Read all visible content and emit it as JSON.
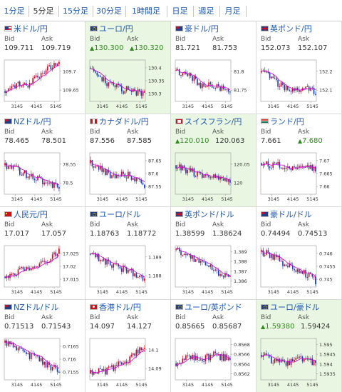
{
  "tabs": [
    {
      "label": "1分足",
      "active": false
    },
    {
      "label": "5分足",
      "active": true
    },
    {
      "label": "15分足",
      "active": false
    },
    {
      "label": "30分足",
      "active": false
    },
    {
      "label": "1時間足",
      "active": false
    },
    {
      "label": "日足",
      "active": false
    },
    {
      "label": "週足",
      "active": false
    },
    {
      "label": "月足",
      "active": false
    }
  ],
  "labels": {
    "bid": "Bid",
    "ask": "Ask"
  },
  "colors": {
    "up_candle": "#e0001a",
    "down_candle": "#1a3cb4",
    "ma_line": "#d600d6",
    "up_text": "#2e8b1c",
    "highlight": "#e9f7e2"
  },
  "pairs": [
    {
      "name": "米ドル/円",
      "flag": "us",
      "bid": "109.711",
      "ask": "109.719",
      "bid_up": false,
      "ask_up": false,
      "highlight": false,
      "y_ticks": [
        "109.7",
        "109.65"
      ],
      "x_ticks": [
        "3145",
        "4145",
        "5145"
      ]
    },
    {
      "name": "ユーロ/円",
      "flag": "eu",
      "bid": "130.300",
      "ask": "130.320",
      "bid_up": true,
      "ask_up": true,
      "highlight": true,
      "y_ticks": [
        "130.4",
        "130.35",
        "130.3"
      ],
      "x_ticks": [
        "3145",
        "4145",
        "5145"
      ]
    },
    {
      "name": "豪ドル/円",
      "flag": "au",
      "bid": "81.721",
      "ask": "81.753",
      "bid_up": false,
      "ask_up": false,
      "highlight": false,
      "y_ticks": [
        "81.8",
        "81.75"
      ],
      "x_ticks": [
        "3145",
        "4145",
        "5145"
      ]
    },
    {
      "name": "英ポンド/円",
      "flag": "gb",
      "bid": "152.073",
      "ask": "152.107",
      "bid_up": false,
      "ask_up": false,
      "highlight": false,
      "y_ticks": [
        "152.2",
        "152.1"
      ],
      "x_ticks": [
        "3145",
        "4145",
        "5145"
      ]
    },
    {
      "name": "NZドル/円",
      "flag": "nz",
      "bid": "78.465",
      "ask": "78.501",
      "bid_up": false,
      "ask_up": false,
      "highlight": false,
      "y_ticks": [
        "78.55",
        "78.5"
      ],
      "x_ticks": [
        "3145",
        "4145",
        "5145"
      ]
    },
    {
      "name": "カナダドル/円",
      "flag": "ca",
      "bid": "87.556",
      "ask": "87.585",
      "bid_up": false,
      "ask_up": false,
      "highlight": false,
      "y_ticks": [
        "87.65",
        "87.6",
        "87.55"
      ],
      "x_ticks": [
        "3145",
        "4145",
        "5145"
      ]
    },
    {
      "name": "スイスフラン/円",
      "flag": "ch",
      "bid": "120.010",
      "ask": "120.063",
      "bid_up": true,
      "ask_up": false,
      "highlight": true,
      "y_ticks": [
        "120.05",
        "120"
      ],
      "x_ticks": [
        "3145",
        "4145",
        "5145"
      ]
    },
    {
      "name": "ランド/円",
      "flag": "za",
      "bid": "7.661",
      "ask": "7.680",
      "bid_up": false,
      "ask_up": true,
      "highlight": false,
      "y_ticks": [
        "7.67",
        "7.665",
        "7.66"
      ],
      "x_ticks": [
        "3145",
        "4145",
        "5145"
      ]
    },
    {
      "name": "人民元/円",
      "flag": "cn",
      "bid": "17.017",
      "ask": "17.057",
      "bid_up": false,
      "ask_up": false,
      "highlight": false,
      "y_ticks": [
        "17.025",
        "17.02",
        "17.015"
      ],
      "x_ticks": [
        "3145",
        "4145",
        "5145"
      ]
    },
    {
      "name": "ユーロ/ドル",
      "flag": "eu",
      "bid": "1.18763",
      "ask": "1.18772",
      "bid_up": false,
      "ask_up": false,
      "highlight": false,
      "y_ticks": [
        "1.189",
        "1.188"
      ],
      "x_ticks": [
        "3145",
        "4145",
        "5145"
      ]
    },
    {
      "name": "英ポンド/ドル",
      "flag": "gb",
      "bid": "1.38599",
      "ask": "1.38624",
      "bid_up": false,
      "ask_up": false,
      "highlight": false,
      "y_ticks": [
        "1.389",
        "1.388",
        "1.387",
        "1.386"
      ],
      "x_ticks": [
        "3145",
        "4145",
        "5145"
      ]
    },
    {
      "name": "豪ドル/ドル",
      "flag": "au",
      "bid": "0.74494",
      "ask": "0.74513",
      "bid_up": false,
      "ask_up": false,
      "highlight": false,
      "y_ticks": [
        "0.746",
        "0.7455",
        "0.745"
      ],
      "x_ticks": [
        "3145",
        "4145",
        "5145"
      ]
    },
    {
      "name": "NZドル/ドル",
      "flag": "nz",
      "bid": "0.71513",
      "ask": "0.71543",
      "bid_up": false,
      "ask_up": false,
      "highlight": false,
      "y_ticks": [
        "0.7165",
        "0.716",
        "0.7155"
      ],
      "x_ticks": [
        "3145",
        "4145",
        "5145"
      ]
    },
    {
      "name": "香港ドル/円",
      "flag": "hk",
      "bid": "14.097",
      "ask": "14.127",
      "bid_up": false,
      "ask_up": false,
      "highlight": false,
      "y_ticks": [
        "14.1",
        "14.09"
      ],
      "x_ticks": [
        "3145",
        "4145",
        "5145"
      ]
    },
    {
      "name": "ユーロ/英ポンド",
      "flag": "eu",
      "bid": "0.85665",
      "ask": "0.85687",
      "bid_up": false,
      "ask_up": false,
      "highlight": false,
      "y_ticks": [
        "0.8568",
        "0.8566",
        "0.8564",
        "0.8562"
      ],
      "x_ticks": [
        "3145",
        "4145",
        "5145"
      ]
    },
    {
      "name": "ユーロ/豪ドル",
      "flag": "eu",
      "bid": "1.59380",
      "ask": "1.59424",
      "bid_up": true,
      "ask_up": false,
      "highlight": true,
      "y_ticks": [
        "1.595",
        "1.5945",
        "1.594",
        "1.5935"
      ],
      "x_ticks": [
        "3145",
        "4145",
        "5145"
      ]
    }
  ]
}
